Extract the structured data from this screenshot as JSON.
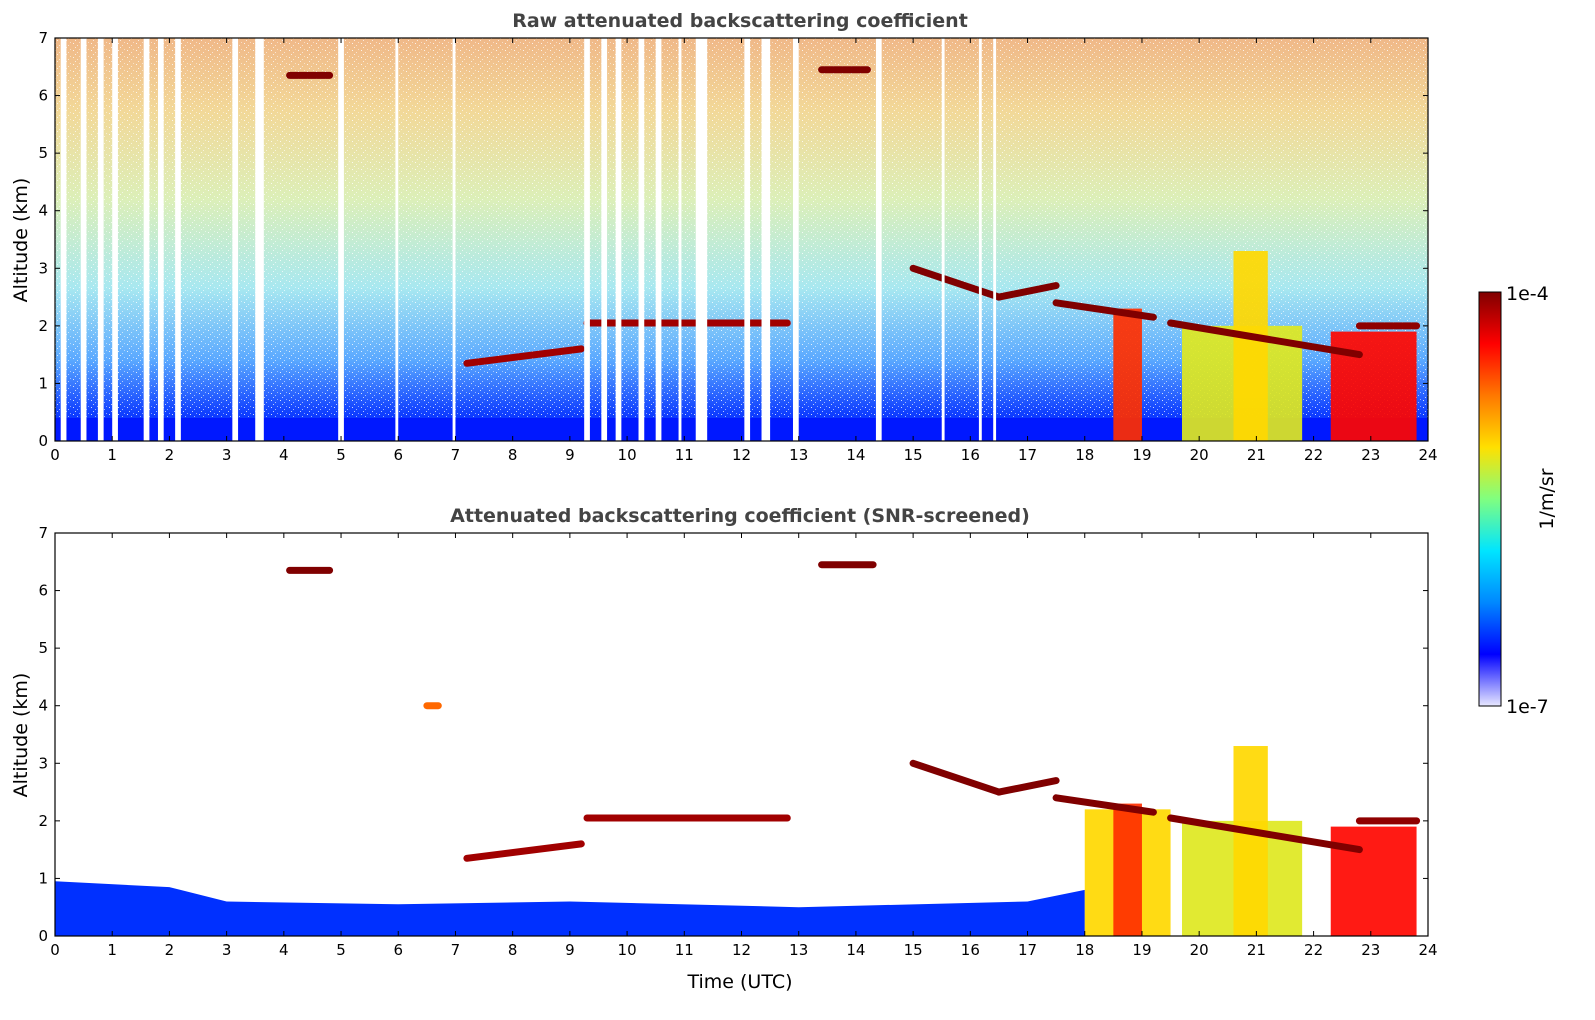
{
  "figure": {
    "colorbar": {
      "label": "1/m/sr",
      "max_label": "1e-4",
      "min_label": "1e-7",
      "scale": "log",
      "range": [
        1e-07,
        0.0001
      ],
      "colormap": [
        "#e8e8ff",
        "#0000ff",
        "#0088ff",
        "#00e5ff",
        "#80ff80",
        "#ffe000",
        "#ff7800",
        "#ff0000",
        "#800000"
      ]
    }
  },
  "chart_data": [
    {
      "type": "heatmap",
      "title": "Raw attenuated backscattering coefficient",
      "xlabel": "",
      "ylabel": "Altitude (km)",
      "xlim": [
        0,
        24
      ],
      "ylim": [
        0,
        7
      ],
      "xticks": [
        "0",
        "1",
        "2",
        "3",
        "4",
        "5",
        "6",
        "7",
        "8",
        "9",
        "10",
        "11",
        "12",
        "13",
        "14",
        "15",
        "16",
        "17",
        "18",
        "19",
        "20",
        "21",
        "22",
        "23",
        "24"
      ],
      "yticks": [
        "0",
        "1",
        "2",
        "3",
        "4",
        "5",
        "6",
        "7"
      ],
      "missing_profiles_utc": [
        [
          0.1,
          0.2
        ],
        [
          0.45,
          0.55
        ],
        [
          0.75,
          0.85
        ],
        [
          1.0,
          1.1
        ],
        [
          1.55,
          1.65
        ],
        [
          1.8,
          1.9
        ],
        [
          2.1,
          2.2
        ],
        [
          3.1,
          3.2
        ],
        [
          3.5,
          3.65
        ],
        [
          4.95,
          5.05
        ],
        [
          5.95,
          6.0
        ],
        [
          6.95,
          7.0
        ],
        [
          9.25,
          9.35
        ],
        [
          9.55,
          9.65
        ],
        [
          9.8,
          9.9
        ],
        [
          10.2,
          10.3
        ],
        [
          10.5,
          10.6
        ],
        [
          10.9,
          10.95
        ],
        [
          11.2,
          11.4
        ],
        [
          12.05,
          12.15
        ],
        [
          12.35,
          12.5
        ],
        [
          12.9,
          13.0
        ],
        [
          14.35,
          14.45
        ],
        [
          15.5,
          15.55
        ],
        [
          16.15,
          16.2
        ],
        [
          16.4,
          16.45
        ]
      ],
      "cloud_layers": [
        {
          "x": [
            4.1,
            4.8
          ],
          "y": 6.35,
          "value": 0.0001
        },
        {
          "x": [
            13.4,
            14.2
          ],
          "y": 6.45,
          "value": 0.0001
        },
        {
          "x": [
            7.2,
            9.2
          ],
          "y_start": 1.35,
          "y_end": 1.6,
          "value": 8e-05
        },
        {
          "x": [
            9.3,
            12.8
          ],
          "y": 2.05,
          "value": 8e-05
        },
        {
          "x": [
            15.0,
            16.5
          ],
          "y_start": 3.0,
          "y_end": 2.5,
          "value": 0.0001
        },
        {
          "x": [
            16.5,
            17.5
          ],
          "y_start": 2.5,
          "y_end": 2.7,
          "value": 0.0001
        },
        {
          "x": [
            17.5,
            19.2
          ],
          "y_start": 2.4,
          "y_end": 2.15,
          "value": 0.0001
        },
        {
          "x": [
            19.5,
            22.8
          ],
          "y_start": 2.05,
          "y_end": 1.5,
          "value": 0.0001
        },
        {
          "x": [
            22.8,
            23.8
          ],
          "y": 2.0,
          "value": 9e-05
        }
      ],
      "precipitation_shafts": [
        {
          "x": [
            18.5,
            19.0
          ],
          "top": 2.3,
          "value": 3e-05
        },
        {
          "x": [
            19.7,
            21.8
          ],
          "top": 2.0,
          "value": 6e-06
        },
        {
          "x": [
            20.6,
            21.2
          ],
          "top": 3.3,
          "value": 8e-06
        },
        {
          "x": [
            22.3,
            23.8
          ],
          "top": 1.9,
          "value": 4e-05
        }
      ],
      "boundary_layer_top_km": 0.4
    },
    {
      "type": "heatmap",
      "title": "Attenuated backscattering coefficient (SNR-screened)",
      "xlabel": "Time (UTC)",
      "ylabel": "Altitude (km)",
      "xlim": [
        0,
        24
      ],
      "ylim": [
        0,
        7
      ],
      "xticks": [
        "0",
        "1",
        "2",
        "3",
        "4",
        "5",
        "6",
        "7",
        "8",
        "9",
        "10",
        "11",
        "12",
        "13",
        "14",
        "15",
        "16",
        "17",
        "18",
        "19",
        "20",
        "21",
        "22",
        "23",
        "24"
      ],
      "yticks": [
        "0",
        "1",
        "2",
        "3",
        "4",
        "5",
        "6",
        "7"
      ],
      "boundary_layer_top_km": [
        {
          "time": 0,
          "top": 0.95
        },
        {
          "time": 2,
          "top": 0.85
        },
        {
          "time": 3,
          "top": 0.6
        },
        {
          "time": 6,
          "top": 0.55
        },
        {
          "time": 9,
          "top": 0.6
        },
        {
          "time": 13,
          "top": 0.5
        },
        {
          "time": 17,
          "top": 0.6
        },
        {
          "time": 18,
          "top": 0.8
        }
      ],
      "cloud_layers": [
        {
          "x": [
            4.1,
            4.8
          ],
          "y": 6.35,
          "value": 0.0001
        },
        {
          "x": [
            13.4,
            14.3
          ],
          "y": 6.45,
          "value": 0.0001
        },
        {
          "x": [
            6.5,
            6.7
          ],
          "y": 4.0,
          "value": 2e-05
        },
        {
          "x": [
            7.2,
            9.2
          ],
          "y_start": 1.35,
          "y_end": 1.6,
          "value": 8e-05
        },
        {
          "x": [
            9.3,
            12.8
          ],
          "y": 2.05,
          "value": 8e-05
        },
        {
          "x": [
            15.0,
            16.5
          ],
          "y_start": 3.0,
          "y_end": 2.5,
          "value": 0.0001
        },
        {
          "x": [
            16.5,
            17.5
          ],
          "y_start": 2.5,
          "y_end": 2.7,
          "value": 0.0001
        },
        {
          "x": [
            17.5,
            19.2
          ],
          "y_start": 2.4,
          "y_end": 2.15,
          "value": 0.0001
        },
        {
          "x": [
            19.5,
            22.8
          ],
          "y_start": 2.05,
          "y_end": 1.5,
          "value": 0.0001
        },
        {
          "x": [
            22.8,
            23.8
          ],
          "y": 2.0,
          "value": 9e-05
        }
      ],
      "precipitation_shafts": [
        {
          "x": [
            18.0,
            19.5
          ],
          "top": 2.2,
          "value": 8e-06
        },
        {
          "x": [
            18.5,
            19.0
          ],
          "top": 2.3,
          "value": 3e-05
        },
        {
          "x": [
            19.7,
            21.8
          ],
          "top": 2.0,
          "value": 6e-06
        },
        {
          "x": [
            20.6,
            21.2
          ],
          "top": 3.3,
          "value": 8e-06
        },
        {
          "x": [
            22.3,
            23.8
          ],
          "top": 1.9,
          "value": 4e-05
        }
      ]
    }
  ]
}
